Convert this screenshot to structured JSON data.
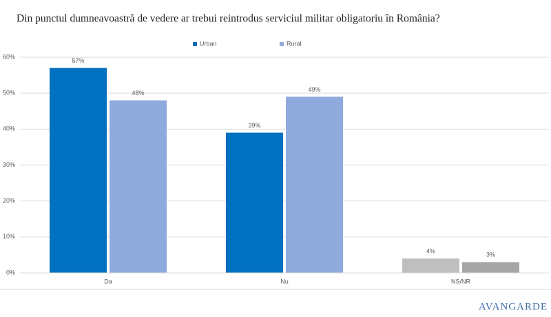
{
  "chart_data": {
    "type": "bar",
    "title": "Din punctul dumneavoastră de vedere ar trebui reintrodus serviciul militar obligatoriu în România?",
    "categories": [
      "Da",
      "Nu",
      "NS/NR"
    ],
    "series": [
      {
        "name": "Urban",
        "color": "#0070c0",
        "colors": [
          "#0070c0",
          "#0070c0",
          "#bfbfbf"
        ],
        "values": [
          57,
          39,
          4
        ],
        "value_labels": [
          "57%",
          "39%",
          "4%"
        ]
      },
      {
        "name": "Rural",
        "color": "#8faadc",
        "colors": [
          "#8faadc",
          "#8faadc",
          "#a6a6a6"
        ],
        "values": [
          48,
          49,
          3
        ],
        "value_labels": [
          "48%",
          "49%",
          "3%"
        ]
      }
    ],
    "ylim": [
      0,
      60
    ],
    "yticks": [
      {
        "value": 0,
        "label": "0%"
      },
      {
        "value": 10,
        "label": "10%"
      },
      {
        "value": 20,
        "label": "20%"
      },
      {
        "value": 30,
        "label": "30%"
      },
      {
        "value": 40,
        "label": "40%"
      },
      {
        "value": 50,
        "label": "50%"
      },
      {
        "value": 60,
        "label": "60%"
      }
    ],
    "grid": true,
    "legend": "top",
    "logo": "AVANGARDE"
  }
}
